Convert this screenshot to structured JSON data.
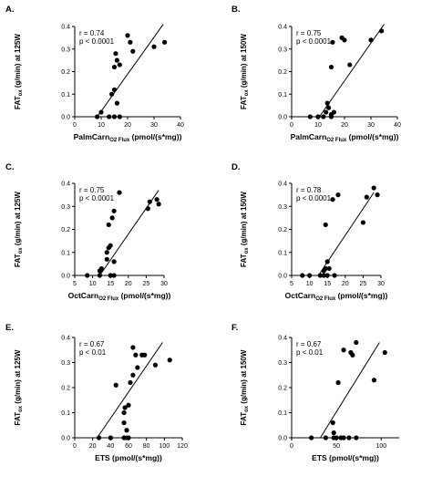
{
  "chart_data": [
    {
      "type": "scatter",
      "panel": "A.",
      "stats": [
        "r = 0.74",
        "p < 0.0001"
      ],
      "xlabel": {
        "main": "PalmCarn",
        "sub": "O2 Flux",
        "unit": " (pmol/(s*mg))"
      },
      "ylabel": {
        "pre": "FAT",
        "sub": "ox",
        "post": " (g/min) at 125W"
      },
      "xlim": [
        0,
        40
      ],
      "ylim": [
        0,
        0.4
      ],
      "xticks": [
        "0",
        "10",
        "20",
        "30",
        "40"
      ],
      "yticks": [
        "0.0",
        "0.1",
        "0.2",
        "0.3",
        "0.4"
      ],
      "points": [
        [
          8.5,
          0
        ],
        [
          13,
          0
        ],
        [
          15,
          0
        ],
        [
          17,
          0
        ],
        [
          10,
          0.02
        ],
        [
          14,
          0.1
        ],
        [
          15,
          0.12
        ],
        [
          16,
          0.06
        ],
        [
          15,
          0.22
        ],
        [
          16,
          0.25
        ],
        [
          15.5,
          0.28
        ],
        [
          17,
          0.23
        ],
        [
          20,
          0.36
        ],
        [
          21,
          0.33
        ],
        [
          22,
          0.29
        ],
        [
          30,
          0.31
        ],
        [
          34,
          0.33
        ]
      ],
      "fit": [
        [
          8.5,
          0
        ],
        [
          33.5,
          0.41
        ]
      ]
    },
    {
      "type": "scatter",
      "panel": "B.",
      "stats": [
        "r = 0.75",
        "p < 0.0001"
      ],
      "xlabel": {
        "main": "PalmCarn",
        "sub": "O2 Flux",
        "unit": " (pmol/(s*mg))"
      },
      "ylabel": {
        "pre": "FAT",
        "sub": "ox",
        "post": " (g/min) at 150W"
      },
      "xlim": [
        0,
        40
      ],
      "ylim": [
        0,
        0.4
      ],
      "xticks": [
        "0",
        "10",
        "20",
        "30",
        "40"
      ],
      "yticks": [
        "0.0",
        "0.1",
        "0.2",
        "0.3",
        "0.4"
      ],
      "points": [
        [
          7,
          0
        ],
        [
          10,
          0
        ],
        [
          12,
          0
        ],
        [
          15,
          0
        ],
        [
          13,
          0.02
        ],
        [
          14,
          0.04
        ],
        [
          15,
          0.01
        ],
        [
          16,
          0.02
        ],
        [
          13.5,
          0.06
        ],
        [
          15,
          0.22
        ],
        [
          15.5,
          0.33
        ],
        [
          19,
          0.35
        ],
        [
          20,
          0.34
        ],
        [
          22,
          0.23
        ],
        [
          30,
          0.34
        ],
        [
          34,
          0.38
        ]
      ],
      "fit": [
        [
          10.5,
          0
        ],
        [
          35,
          0.41
        ]
      ]
    },
    {
      "type": "scatter",
      "panel": "C.",
      "stats": [
        "r = 0.75",
        "p < 0.0001"
      ],
      "xlabel": {
        "main": "OctCarn",
        "sub": "O2 Flux",
        "unit": " (pmol/(s*mg))"
      },
      "ylabel": {
        "pre": "FAT",
        "sub": "ox",
        "post": " (g/min) at 125W"
      },
      "xlim": [
        5,
        30
      ],
      "ylim": [
        0,
        0.4
      ],
      "xticks": [
        "5",
        "10",
        "15",
        "20",
        "25",
        "30"
      ],
      "yticks": [
        "0.0",
        "0.1",
        "0.2",
        "0.3",
        "0.4"
      ],
      "points": [
        [
          8.5,
          0
        ],
        [
          12,
          0
        ],
        [
          15,
          0
        ],
        [
          16,
          0
        ],
        [
          12,
          0.02
        ],
        [
          12.5,
          0.03
        ],
        [
          14,
          0.07
        ],
        [
          14,
          0.1
        ],
        [
          14.5,
          0.12
        ],
        [
          15,
          0.13
        ],
        [
          16,
          0.06
        ],
        [
          14.5,
          0.22
        ],
        [
          15.5,
          0.25
        ],
        [
          16,
          0.28
        ],
        [
          17.5,
          0.36
        ],
        [
          25.5,
          0.29
        ],
        [
          26,
          0.32
        ],
        [
          28,
          0.33
        ],
        [
          28.5,
          0.31
        ]
      ],
      "fit": [
        [
          12,
          0
        ],
        [
          28.5,
          0.37
        ]
      ]
    },
    {
      "type": "scatter",
      "panel": "D.",
      "stats": [
        "r = 0.78",
        "p < 0.0001"
      ],
      "xlabel": {
        "main": "OctCarn",
        "sub": "O2 Flux",
        "unit": " (pmol/(s*mg))"
      },
      "ylabel": {
        "pre": "FAT",
        "sub": "ox",
        "post": " (g/min) at 150W"
      },
      "xlim": [
        5,
        30
      ],
      "ylim": [
        0,
        0.4
      ],
      "xticks": [
        "5",
        "10",
        "15",
        "20",
        "25",
        "30"
      ],
      "yticks": [
        "0.0",
        "0.1",
        "0.2",
        "0.3",
        "0.4"
      ],
      "points": [
        [
          8,
          0
        ],
        [
          10,
          0
        ],
        [
          13,
          0
        ],
        [
          14,
          0
        ],
        [
          15,
          0
        ],
        [
          17,
          0
        ],
        [
          14,
          0.02
        ],
        [
          14.5,
          0.03
        ],
        [
          15,
          0.06
        ],
        [
          15.5,
          0.03
        ],
        [
          14.5,
          0.22
        ],
        [
          16.5,
          0.33
        ],
        [
          18,
          0.35
        ],
        [
          25,
          0.23
        ],
        [
          26,
          0.34
        ],
        [
          28,
          0.38
        ],
        [
          29,
          0.35
        ]
      ],
      "fit": [
        [
          12.5,
          0
        ],
        [
          28,
          0.36
        ]
      ]
    },
    {
      "type": "scatter",
      "panel": "E.",
      "stats": [
        "r = 0.67",
        "p < 0.01"
      ],
      "xlabel": {
        "main": "ETS",
        "sub": "",
        "unit": " (pmol/(s*mg))"
      },
      "ylabel": {
        "pre": "FAT",
        "sub": "ox",
        "post": " (g/min) at 125W"
      },
      "xlim": [
        0,
        120
      ],
      "ylim": [
        0,
        0.4
      ],
      "xticks": [
        "0",
        "20",
        "40",
        "60",
        "80",
        "100",
        "120"
      ],
      "yticks": [
        "0.0",
        "0.1",
        "0.2",
        "0.3",
        "0.4"
      ],
      "points": [
        [
          27,
          0
        ],
        [
          40,
          0
        ],
        [
          55,
          0
        ],
        [
          58,
          0
        ],
        [
          60,
          0
        ],
        [
          58,
          0.03
        ],
        [
          55,
          0.06
        ],
        [
          55,
          0.1
        ],
        [
          56,
          0.12
        ],
        [
          60,
          0.13
        ],
        [
          46,
          0.21
        ],
        [
          62,
          0.22
        ],
        [
          65,
          0.25
        ],
        [
          70,
          0.28
        ],
        [
          68,
          0.33
        ],
        [
          65,
          0.36
        ],
        [
          75,
          0.33
        ],
        [
          78,
          0.33
        ],
        [
          90,
          0.29
        ],
        [
          106,
          0.31
        ]
      ],
      "fit": [
        [
          25,
          0
        ],
        [
          98,
          0.38
        ]
      ]
    },
    {
      "type": "scatter",
      "panel": "F.",
      "stats": [
        "r = 0.67",
        "p < 0.01"
      ],
      "xlabel": {
        "main": "ETS",
        "sub": "",
        "unit": " (pmol/(s*mg))"
      },
      "ylabel": {
        "pre": "FAT",
        "sub": "ox",
        "post": " (g/min) at 150W"
      },
      "xlim": [
        0,
        120
      ],
      "ylim": [
        0,
        0.4
      ],
      "xticks": [
        "0",
        "50",
        "100"
      ],
      "yticks": [
        "0.0",
        "0.1",
        "0.2",
        "0.3",
        "0.4"
      ],
      "points": [
        [
          22,
          0
        ],
        [
          38,
          0
        ],
        [
          47,
          0
        ],
        [
          50,
          0
        ],
        [
          55,
          0
        ],
        [
          58,
          0
        ],
        [
          64,
          0
        ],
        [
          72,
          0
        ],
        [
          47,
          0.02
        ],
        [
          46,
          0.06
        ],
        [
          52,
          0.22
        ],
        [
          58,
          0.35
        ],
        [
          66,
          0.34
        ],
        [
          68,
          0.33
        ],
        [
          72,
          0.38
        ],
        [
          92,
          0.23
        ],
        [
          104,
          0.34
        ]
      ],
      "fit": [
        [
          32,
          0
        ],
        [
          98,
          0.38
        ]
      ]
    }
  ]
}
